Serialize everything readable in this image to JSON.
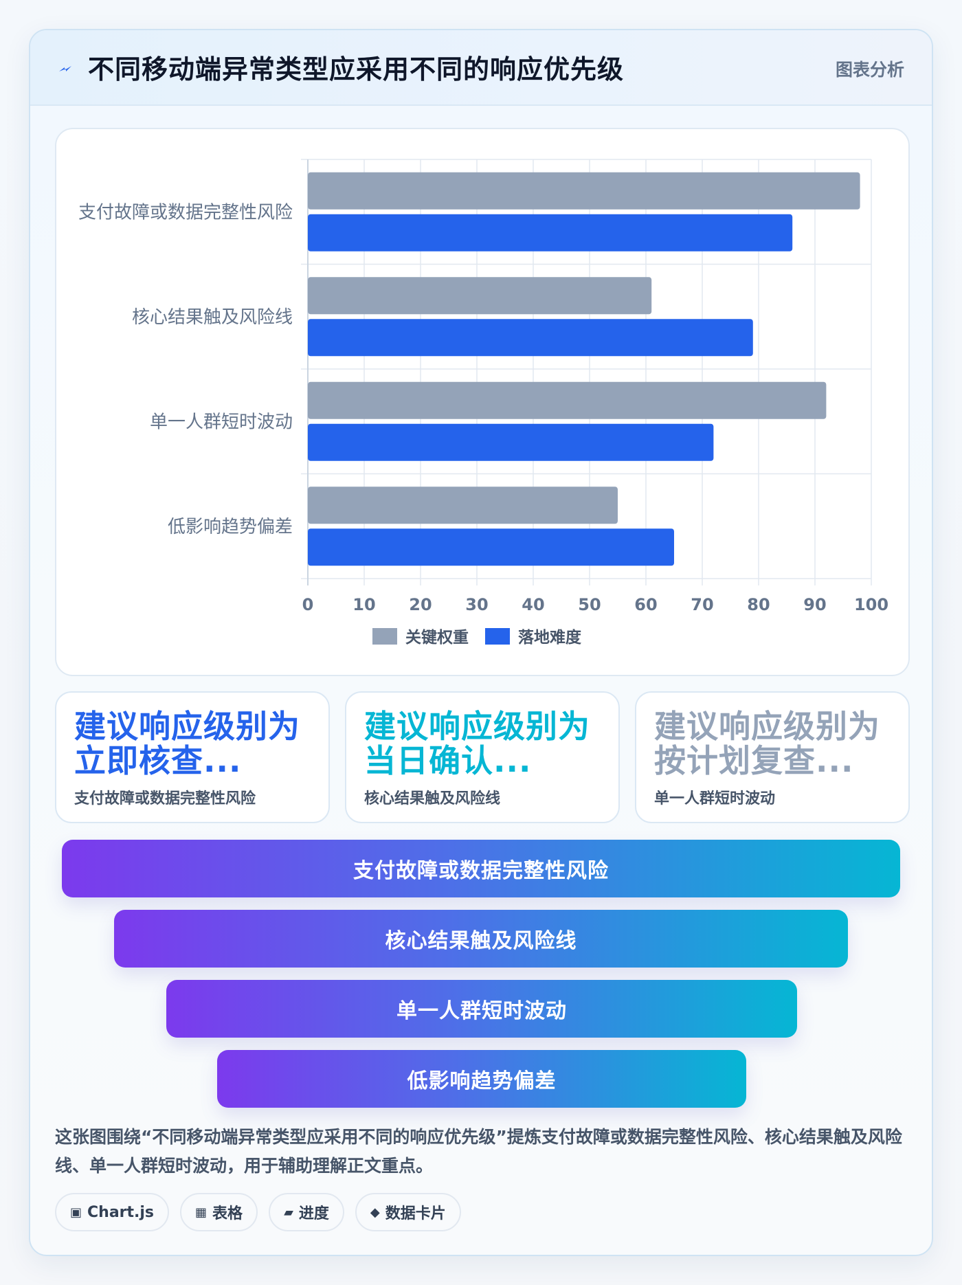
{
  "header": {
    "title": "不同移动端异常类型应采用不同的响应优先级",
    "tag": "图表分析",
    "icon": "lightning-icon",
    "icon_color": "#2563eb"
  },
  "chart_data": {
    "type": "bar",
    "orientation": "horizontal",
    "categories": [
      "支付故障或数据完整性风险",
      "核心结果触及风险线",
      "单一人群短时波动",
      "低影响趋势偏差"
    ],
    "series": [
      {
        "name": "关键权重",
        "values": [
          98,
          61,
          92,
          55
        ],
        "color": "#94a3b8"
      },
      {
        "name": "落地难度",
        "values": [
          86,
          79,
          72,
          65
        ],
        "color": "#2563eb"
      }
    ],
    "xlim": [
      0,
      100
    ],
    "xticks": [
      "0",
      "10",
      "20",
      "30",
      "40",
      "50",
      "60",
      "70",
      "80",
      "90",
      "100"
    ],
    "grid": true,
    "legend_position": "bottom"
  },
  "stat_cards": [
    {
      "value": "建议响应级别为立即核查...",
      "label": "支付故障或数据完整性风险",
      "color": "#2563eb"
    },
    {
      "value": "建议响应级别为当日确认...",
      "label": "核心结果触及风险线",
      "color": "#06b6d4"
    },
    {
      "value": "建议响应级别为按计划复查...",
      "label": "单一人群短时波动",
      "color": "#94a3b8"
    }
  ],
  "funnel": [
    "支付故障或数据完整性风险",
    "核心结果触及风险线",
    "单一人群短时波动",
    "低影响趋势偏差"
  ],
  "summary": "这张图围绕“不同移动端异常类型应采用不同的响应优先级”提炼支付故障或数据完整性风险、核心结果触及风险线、单一人群短时波动，用于辅助理解正文重点。",
  "chips": [
    {
      "icon": "▣",
      "icon_name": "chart-icon",
      "label": "Chart.js"
    },
    {
      "icon": "▦",
      "icon_name": "table-icon",
      "label": "表格"
    },
    {
      "icon": "▰",
      "icon_name": "progress-icon",
      "label": "进度"
    },
    {
      "icon": "◆",
      "icon_name": "data-card-icon",
      "label": "数据卡片"
    }
  ]
}
